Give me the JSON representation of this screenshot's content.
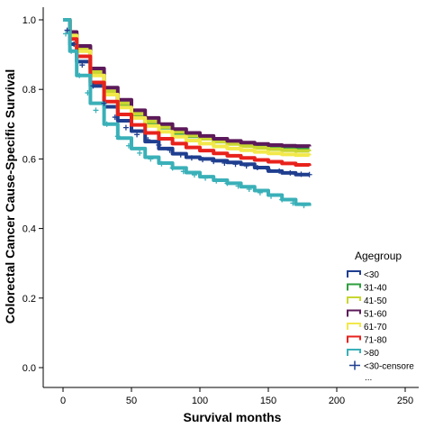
{
  "chart_data": {
    "type": "line",
    "xlabel": "Survival months",
    "ylabel": "Colorectal Cancer Cause-Specific Survival",
    "xlim": [
      0,
      250
    ],
    "ylim": [
      0.0,
      1.0
    ],
    "x_ticks": [
      "0",
      "50",
      "100",
      "150",
      "200",
      "250"
    ],
    "y_ticks": [
      "0.0",
      "0.2",
      "0.4",
      "0.6",
      "0.8",
      "1.0"
    ],
    "grid": false,
    "legend_title": "Agegroup",
    "legend_position": "right",
    "legend_more": "...",
    "series": [
      {
        "name": "<30",
        "color": "#1f3e8f",
        "marker": "none",
        "points": [
          [
            0,
            1.0
          ],
          [
            5,
            0.93
          ],
          [
            10,
            0.88
          ],
          [
            20,
            0.81
          ],
          [
            30,
            0.75
          ],
          [
            40,
            0.71
          ],
          [
            50,
            0.68
          ],
          [
            60,
            0.65
          ],
          [
            70,
            0.63
          ],
          [
            80,
            0.615
          ],
          [
            90,
            0.605
          ],
          [
            100,
            0.6
          ],
          [
            110,
            0.595
          ],
          [
            120,
            0.59
          ],
          [
            130,
            0.585
          ],
          [
            140,
            0.575
          ],
          [
            150,
            0.565
          ],
          [
            160,
            0.56
          ],
          [
            170,
            0.555
          ],
          [
            180,
            0.555
          ]
        ]
      },
      {
        "name": "31-40",
        "color": "#2e9e3e",
        "marker": "none",
        "points": [
          [
            0,
            1.0
          ],
          [
            5,
            0.96
          ],
          [
            10,
            0.92
          ],
          [
            20,
            0.85
          ],
          [
            30,
            0.79
          ],
          [
            40,
            0.755
          ],
          [
            50,
            0.725
          ],
          [
            60,
            0.705
          ],
          [
            70,
            0.69
          ],
          [
            80,
            0.675
          ],
          [
            90,
            0.665
          ],
          [
            100,
            0.658
          ],
          [
            110,
            0.65
          ],
          [
            120,
            0.645
          ],
          [
            130,
            0.64
          ],
          [
            140,
            0.635
          ],
          [
            150,
            0.632
          ],
          [
            160,
            0.63
          ],
          [
            170,
            0.628
          ],
          [
            180,
            0.628
          ]
        ]
      },
      {
        "name": "41-50",
        "color": "#c8d630",
        "marker": "none",
        "points": [
          [
            0,
            1.0
          ],
          [
            5,
            0.96
          ],
          [
            10,
            0.92
          ],
          [
            20,
            0.85
          ],
          [
            30,
            0.795
          ],
          [
            40,
            0.76
          ],
          [
            50,
            0.73
          ],
          [
            60,
            0.708
          ],
          [
            70,
            0.692
          ],
          [
            80,
            0.678
          ],
          [
            90,
            0.667
          ],
          [
            100,
            0.658
          ],
          [
            110,
            0.65
          ],
          [
            120,
            0.643
          ],
          [
            130,
            0.637
          ],
          [
            140,
            0.632
          ],
          [
            150,
            0.628
          ],
          [
            160,
            0.625
          ],
          [
            170,
            0.623
          ],
          [
            180,
            0.622
          ]
        ]
      },
      {
        "name": "51-60",
        "color": "#5c1a5a",
        "marker": "none",
        "points": [
          [
            0,
            1.0
          ],
          [
            5,
            0.965
          ],
          [
            10,
            0.925
          ],
          [
            20,
            0.86
          ],
          [
            30,
            0.805
          ],
          [
            40,
            0.77
          ],
          [
            50,
            0.74
          ],
          [
            60,
            0.718
          ],
          [
            70,
            0.7
          ],
          [
            80,
            0.686
          ],
          [
            90,
            0.675
          ],
          [
            100,
            0.666
          ],
          [
            110,
            0.658
          ],
          [
            120,
            0.652
          ],
          [
            130,
            0.647
          ],
          [
            140,
            0.643
          ],
          [
            150,
            0.64
          ],
          [
            160,
            0.638
          ],
          [
            170,
            0.637
          ],
          [
            180,
            0.636
          ]
        ]
      },
      {
        "name": "61-70",
        "color": "#f2e84a",
        "marker": "none",
        "points": [
          [
            0,
            1.0
          ],
          [
            5,
            0.955
          ],
          [
            10,
            0.91
          ],
          [
            20,
            0.84
          ],
          [
            30,
            0.785
          ],
          [
            40,
            0.748
          ],
          [
            50,
            0.718
          ],
          [
            60,
            0.695
          ],
          [
            70,
            0.678
          ],
          [
            80,
            0.664
          ],
          [
            90,
            0.653
          ],
          [
            100,
            0.644
          ],
          [
            110,
            0.636
          ],
          [
            120,
            0.63
          ],
          [
            130,
            0.625
          ],
          [
            140,
            0.62
          ],
          [
            150,
            0.616
          ],
          [
            160,
            0.613
          ],
          [
            170,
            0.611
          ],
          [
            180,
            0.61
          ]
        ]
      },
      {
        "name": "71-80",
        "color": "#e8221c",
        "marker": "none",
        "points": [
          [
            0,
            1.0
          ],
          [
            5,
            0.945
          ],
          [
            10,
            0.895
          ],
          [
            20,
            0.82
          ],
          [
            30,
            0.765
          ],
          [
            40,
            0.728
          ],
          [
            50,
            0.698
          ],
          [
            60,
            0.675
          ],
          [
            70,
            0.658
          ],
          [
            80,
            0.644
          ],
          [
            90,
            0.633
          ],
          [
            100,
            0.624
          ],
          [
            110,
            0.616
          ],
          [
            120,
            0.609
          ],
          [
            130,
            0.603
          ],
          [
            140,
            0.597
          ],
          [
            150,
            0.592
          ],
          [
            160,
            0.587
          ],
          [
            170,
            0.583
          ],
          [
            180,
            0.58
          ]
        ]
      },
      {
        "name": ">80",
        "color": "#3ab0b8",
        "marker": "none",
        "points": [
          [
            0,
            1.0
          ],
          [
            5,
            0.91
          ],
          [
            10,
            0.84
          ],
          [
            20,
            0.76
          ],
          [
            30,
            0.7
          ],
          [
            40,
            0.66
          ],
          [
            50,
            0.63
          ],
          [
            60,
            0.605
          ],
          [
            70,
            0.588
          ],
          [
            80,
            0.574
          ],
          [
            90,
            0.561
          ],
          [
            100,
            0.549
          ],
          [
            110,
            0.539
          ],
          [
            120,
            0.53
          ],
          [
            130,
            0.52
          ],
          [
            140,
            0.509
          ],
          [
            150,
            0.496
          ],
          [
            160,
            0.483
          ],
          [
            170,
            0.47
          ],
          [
            180,
            0.465
          ]
        ]
      },
      {
        "name": "<30-censore",
        "color": "#1f3e8f",
        "marker": "plus",
        "points": [
          [
            3,
            0.97
          ],
          [
            8,
            0.93
          ],
          [
            14,
            0.87
          ],
          [
            22,
            0.81
          ],
          [
            30,
            0.76
          ],
          [
            38,
            0.72
          ],
          [
            46,
            0.69
          ],
          [
            54,
            0.67
          ],
          [
            62,
            0.655
          ],
          [
            70,
            0.64
          ],
          [
            78,
            0.625
          ],
          [
            86,
            0.612
          ],
          [
            94,
            0.603
          ],
          [
            102,
            0.598
          ],
          [
            110,
            0.593
          ],
          [
            118,
            0.588
          ],
          [
            126,
            0.585
          ],
          [
            134,
            0.58
          ],
          [
            142,
            0.575
          ],
          [
            150,
            0.57
          ],
          [
            158,
            0.565
          ],
          [
            166,
            0.56
          ],
          [
            174,
            0.556
          ],
          [
            180,
            0.555
          ]
        ]
      },
      {
        "name": "",
        "color": "#3ab0b8",
        "marker": "plus",
        "points": [
          [
            2,
            0.96
          ],
          [
            6,
            0.91
          ],
          [
            12,
            0.84
          ],
          [
            18,
            0.79
          ],
          [
            24,
            0.74
          ],
          [
            32,
            0.7
          ],
          [
            40,
            0.665
          ],
          [
            48,
            0.638
          ],
          [
            56,
            0.617
          ],
          [
            64,
            0.6
          ],
          [
            72,
            0.586
          ],
          [
            80,
            0.574
          ],
          [
            88,
            0.564
          ],
          [
            96,
            0.554
          ],
          [
            104,
            0.545
          ],
          [
            112,
            0.537
          ],
          [
            120,
            0.53
          ],
          [
            128,
            0.522
          ],
          [
            136,
            0.513
          ],
          [
            144,
            0.503
          ],
          [
            152,
            0.493
          ],
          [
            160,
            0.483
          ],
          [
            168,
            0.473
          ],
          [
            176,
            0.466
          ]
        ]
      }
    ],
    "legend_entries": [
      "<30",
      "31-40",
      "41-50",
      "51-60",
      "61-70",
      "71-80",
      ">80",
      "<30-censore"
    ]
  }
}
